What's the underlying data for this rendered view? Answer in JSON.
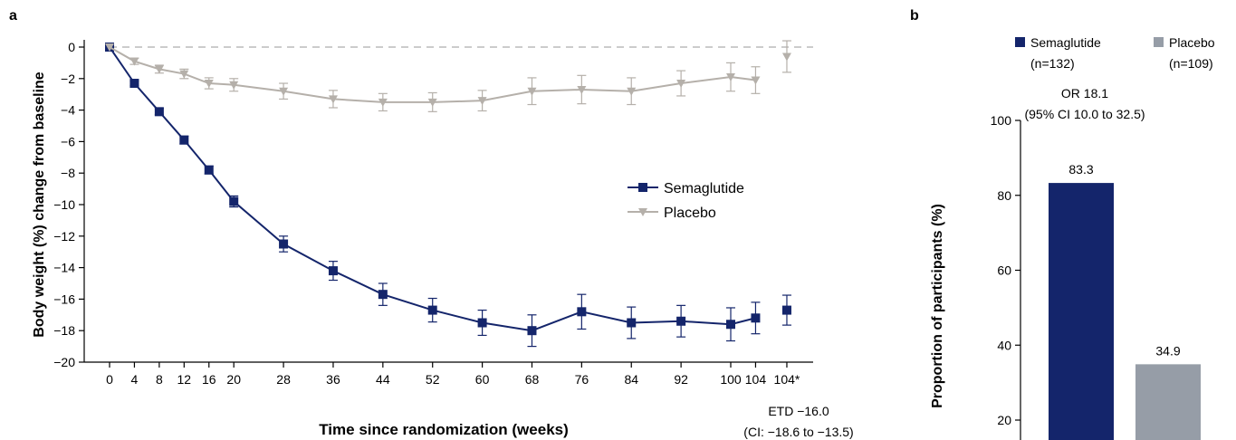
{
  "colors": {
    "semaglutide": "#14256b",
    "placebo_line": "#b5b0aa",
    "placebo_bar": "#969da7",
    "reference_line": "#cccccc",
    "axis": "#000000"
  },
  "panel_a": {
    "label": "a",
    "annotation_line1": "ETD −16.0",
    "annotation_line2": "(CI: −18.6 to −13.5)"
  },
  "panel_b": {
    "label": "b",
    "legend": [
      {
        "name": "Semaglutide",
        "sub": "(n=132)"
      },
      {
        "name": "Placebo",
        "sub": "(n=109)"
      }
    ],
    "annotation_line1": "OR 18.1",
    "annotation_line2": "(95% CI 10.0 to 32.5)"
  },
  "chart_data": [
    {
      "type": "line",
      "xlabel": "Time since randomization (weeks)",
      "ylabel": "Body weight (%) change from baseline",
      "ylim": [
        -20,
        0
      ],
      "yticks": [
        0,
        -2,
        -4,
        -6,
        -8,
        -10,
        -12,
        -14,
        -16,
        -18,
        -20
      ],
      "xticks": [
        "0",
        "4",
        "8",
        "12",
        "16",
        "20",
        "28",
        "36",
        "44",
        "52",
        "60",
        "68",
        "76",
        "84",
        "92",
        "100",
        "104",
        "104*"
      ],
      "reference_line_y": 0,
      "grid": false,
      "legend_position": "center-right",
      "series": [
        {
          "name": "Semaglutide",
          "marker": "square",
          "x": [
            0,
            4,
            8,
            12,
            16,
            20,
            28,
            36,
            44,
            52,
            60,
            68,
            76,
            84,
            92,
            100,
            104
          ],
          "y": [
            0,
            -2.3,
            -4.1,
            -5.9,
            -7.8,
            -9.8,
            -12.5,
            -14.2,
            -15.7,
            -16.7,
            -17.5,
            -18.0,
            -16.8,
            -17.5,
            -17.4,
            -17.6,
            -17.2
          ],
          "err": [
            0,
            0.15,
            0.2,
            0.25,
            0.25,
            0.35,
            0.5,
            0.6,
            0.7,
            0.75,
            0.8,
            1.0,
            1.1,
            1.0,
            1.0,
            1.05,
            1.0
          ],
          "extra_point": {
            "x": "104*",
            "y": -16.7,
            "err": 0.95
          }
        },
        {
          "name": "Placebo",
          "marker": "triangle-down",
          "x": [
            0,
            4,
            8,
            12,
            16,
            20,
            28,
            36,
            44,
            52,
            60,
            68,
            76,
            84,
            92,
            100,
            104
          ],
          "y": [
            0,
            -0.9,
            -1.4,
            -1.7,
            -2.3,
            -2.4,
            -2.8,
            -3.3,
            -3.5,
            -3.5,
            -3.4,
            -2.8,
            -2.7,
            -2.8,
            -2.3,
            -1.9,
            -2.1
          ],
          "err": [
            0,
            0.2,
            0.25,
            0.3,
            0.35,
            0.4,
            0.5,
            0.55,
            0.55,
            0.6,
            0.65,
            0.85,
            0.9,
            0.85,
            0.8,
            0.9,
            0.85
          ],
          "extra_point": {
            "x": "104*",
            "y": -0.6,
            "err": 1.0
          }
        }
      ]
    },
    {
      "type": "bar",
      "ylabel": "Proportion of participants (%)",
      "ylim": [
        15,
        100
      ],
      "yticks": [
        20,
        40,
        60,
        80,
        100
      ],
      "grid": false,
      "legend_position": "top",
      "categories": [
        "Semaglutide",
        "Placebo"
      ],
      "values": [
        83.3,
        34.9
      ],
      "value_labels": [
        "83.3",
        "34.9"
      ]
    }
  ]
}
